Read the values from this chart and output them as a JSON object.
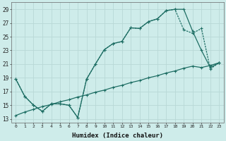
{
  "xlabel": "Humidex (Indice chaleur)",
  "background_color": "#ceecea",
  "grid_color": "#b8d8d6",
  "line_color": "#1e6e64",
  "xlim": [
    -0.5,
    23.5
  ],
  "ylim": [
    12.5,
    30.0
  ],
  "xtick_labels": [
    "0",
    "1",
    "2",
    "3",
    "4",
    "5",
    "6",
    "7",
    "8",
    "9",
    "10",
    "11",
    "12",
    "13",
    "14",
    "15",
    "16",
    "17",
    "18",
    "19",
    "20",
    "21",
    "22",
    "23"
  ],
  "ytick_values": [
    13,
    15,
    17,
    19,
    21,
    23,
    25,
    27,
    29
  ],
  "line1_x": [
    0,
    1,
    2,
    3,
    4,
    5,
    6,
    7,
    8,
    9,
    10,
    11,
    12,
    13,
    14,
    15,
    16,
    17,
    18,
    19,
    20,
    21,
    22,
    23
  ],
  "line1_y": [
    18.8,
    16.3,
    15.0,
    14.1,
    15.2,
    15.2,
    15.0,
    13.2,
    18.8,
    21.0,
    23.1,
    24.0,
    24.3,
    26.3,
    26.2,
    27.2,
    27.6,
    28.8,
    29.0,
    29.0,
    25.8,
    23.0,
    20.5,
    21.2
  ],
  "line2_x": [
    0,
    1,
    2,
    3,
    4,
    5,
    6,
    7,
    8,
    9,
    10,
    11,
    12,
    13,
    14,
    15,
    16,
    17,
    18,
    19,
    20,
    21,
    22,
    23
  ],
  "line2_y": [
    18.8,
    16.3,
    15.0,
    14.1,
    15.2,
    15.2,
    15.0,
    13.2,
    18.8,
    21.0,
    23.1,
    24.0,
    24.3,
    26.3,
    26.2,
    27.2,
    27.6,
    28.8,
    29.0,
    26.0,
    25.5,
    26.2,
    20.3,
    21.2
  ],
  "line3_x": [
    0,
    1,
    2,
    3,
    4,
    5,
    6,
    7,
    8,
    9,
    10,
    11,
    12,
    13,
    14,
    15,
    16,
    17,
    18,
    19,
    20,
    21,
    22,
    23
  ],
  "line3_y": [
    13.5,
    14.0,
    14.4,
    14.8,
    15.1,
    15.5,
    15.8,
    16.2,
    16.5,
    16.9,
    17.2,
    17.6,
    17.9,
    18.3,
    18.6,
    19.0,
    19.3,
    19.7,
    20.0,
    20.4,
    20.7,
    20.5,
    20.8,
    21.2
  ]
}
